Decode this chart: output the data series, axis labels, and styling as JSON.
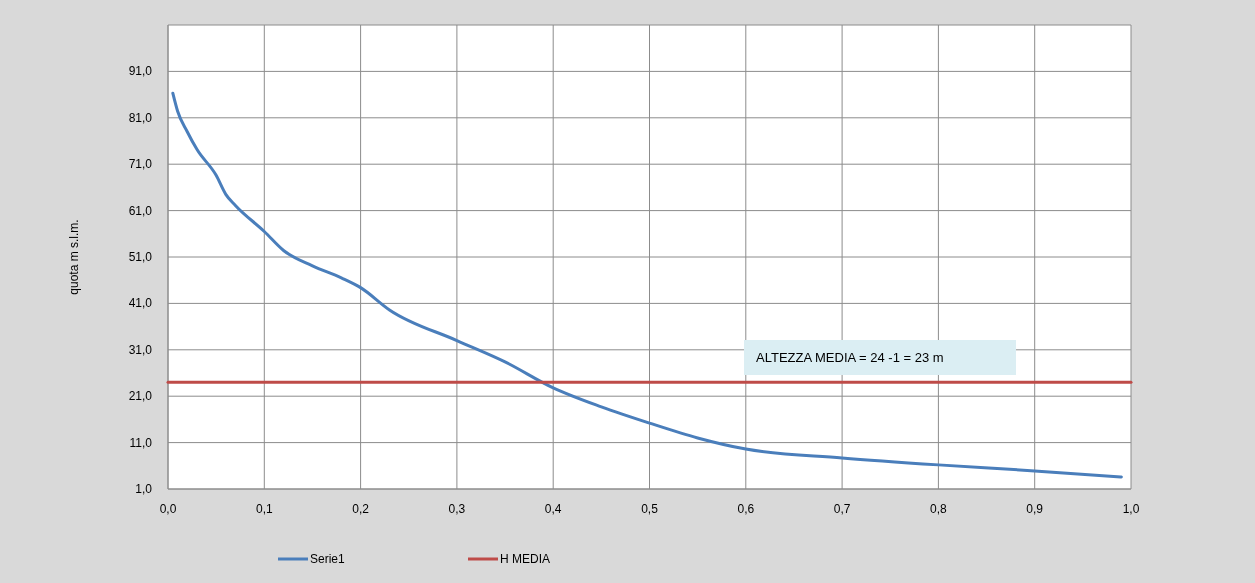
{
  "chart_data": {
    "type": "line",
    "ylabel": "quota  m s.l.m.",
    "annotations": [
      "ALTEZZA MEDIA = 24 -1 = 23 m"
    ],
    "xlim": [
      0,
      1
    ],
    "xticks": [
      {
        "value": 0,
        "label": "0,0"
      },
      {
        "value": 0.1,
        "label": "0,1"
      },
      {
        "value": 0.2,
        "label": "0,2"
      },
      {
        "value": 0.3,
        "label": "0,3"
      },
      {
        "value": 0.4,
        "label": "0,4"
      },
      {
        "value": 0.5,
        "label": "0,5"
      },
      {
        "value": 0.6,
        "label": "0,6"
      },
      {
        "value": 0.7,
        "label": "0,7"
      },
      {
        "value": 0.8,
        "label": "0,8"
      },
      {
        "value": 0.9,
        "label": "0,9"
      },
      {
        "value": 1,
        "label": "1,0"
      }
    ],
    "ylim": [
      1,
      101
    ],
    "yticks": [
      {
        "value": 1,
        "label": "1,0"
      },
      {
        "value": 11,
        "label": "11,0"
      },
      {
        "value": 21,
        "label": "21,0"
      },
      {
        "value": 31,
        "label": "31,0"
      },
      {
        "value": 41,
        "label": "41,0"
      },
      {
        "value": 51,
        "label": "51,0"
      },
      {
        "value": 61,
        "label": "61,0"
      },
      {
        "value": 71,
        "label": "71,0"
      },
      {
        "value": 81,
        "label": "81,0"
      },
      {
        "value": 91,
        "label": "91,0"
      },
      {
        "value": 101,
        "label": null
      }
    ],
    "grid": true,
    "legend": "bottom",
    "marker": "none",
    "series": [
      {
        "name": "Serie1",
        "color": "#4a7ebb",
        "x": [
          0.005,
          0.01,
          0.02,
          0.03,
          0.05,
          0.06,
          0.07,
          0.1,
          0.12,
          0.15,
          0.18,
          0.2,
          0.23,
          0.3,
          0.35,
          0.4,
          0.45,
          0.5,
          0.55,
          0.6,
          0.7,
          0.8,
          0.9,
          0.99
        ],
        "values": [
          86.3,
          82.4,
          78,
          74.2,
          68.6,
          64.5,
          62.1,
          56.5,
          52.4,
          49.1,
          46.5,
          44.4,
          39.6,
          33,
          28.4,
          22.8,
          18.7,
          15.2,
          12,
          9.6,
          7.7,
          6.2,
          4.9,
          3.6
        ]
      },
      {
        "name": "H MEDIA",
        "color": "#be4b48",
        "x": [
          0,
          1
        ],
        "values": [
          24,
          24
        ]
      }
    ]
  }
}
